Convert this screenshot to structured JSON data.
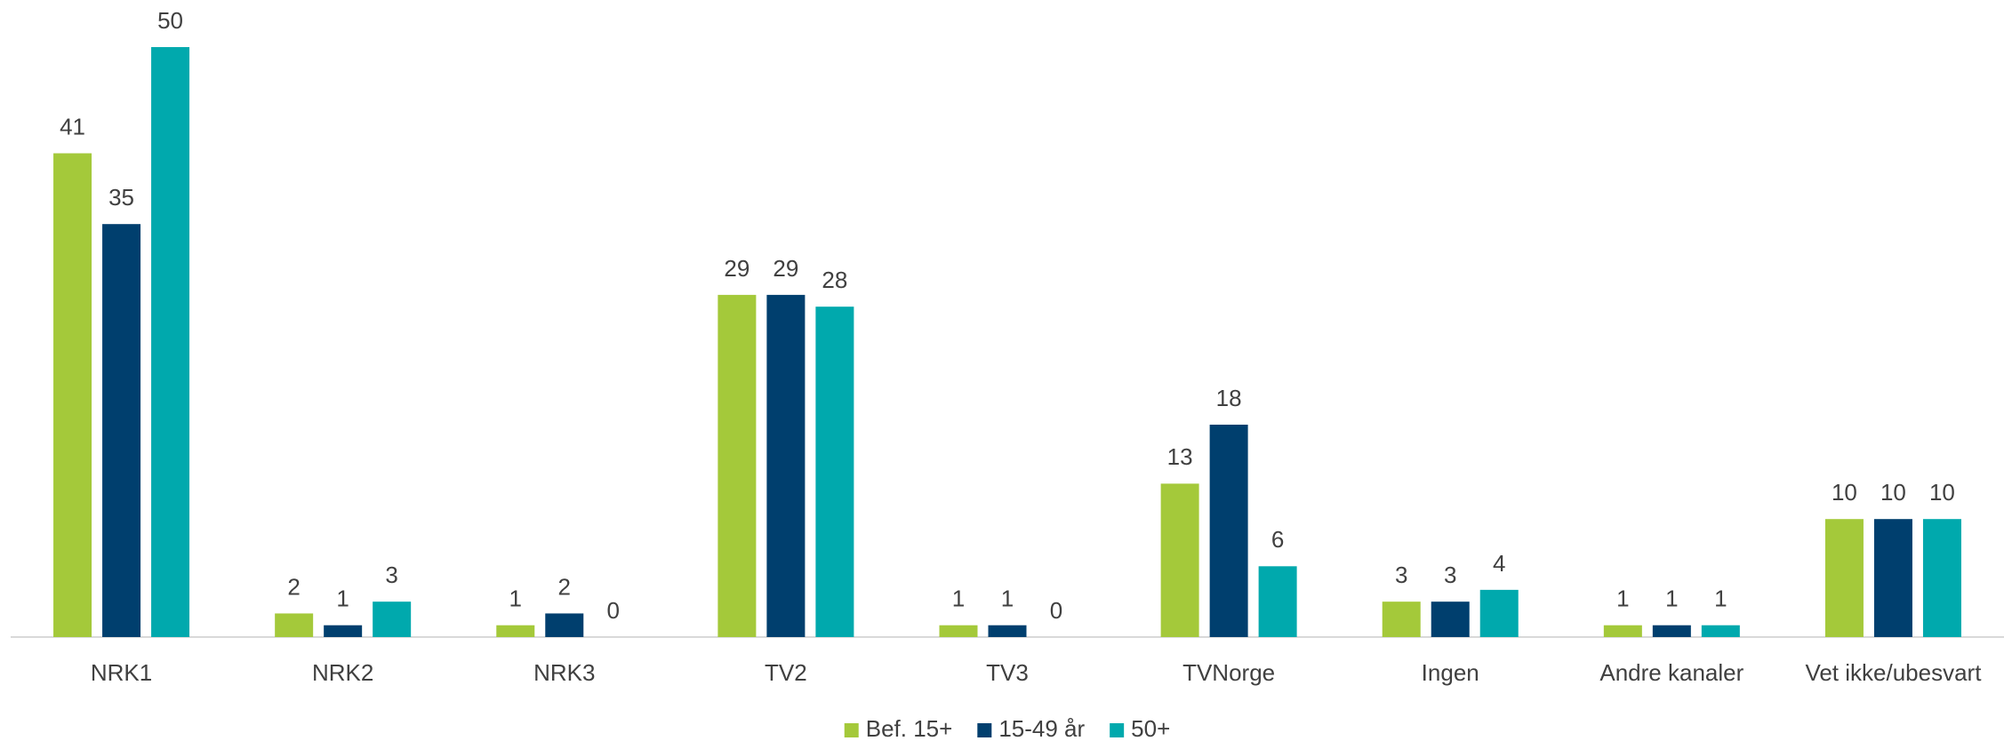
{
  "chart_data": {
    "type": "bar",
    "categories": [
      "NRK1",
      "NRK2",
      "NRK3",
      "TV2",
      "TV3",
      "TVNorge",
      "Ingen",
      "Andre kanaler",
      "Vet ikke/ubesvart"
    ],
    "series": [
      {
        "name": "Bef. 15+",
        "color": "#a4c93a",
        "values": [
          41,
          2,
          1,
          29,
          1,
          13,
          3,
          1,
          10
        ]
      },
      {
        "name": "15-49 år",
        "color": "#003f6e",
        "values": [
          35,
          1,
          2,
          29,
          1,
          18,
          3,
          1,
          10
        ]
      },
      {
        "name": "50+",
        "color": "#00a9ad",
        "values": [
          50,
          3,
          0,
          28,
          0,
          6,
          4,
          1,
          10
        ]
      }
    ],
    "ylim": [
      0,
      50
    ],
    "grid": false,
    "legend": "bottom"
  }
}
